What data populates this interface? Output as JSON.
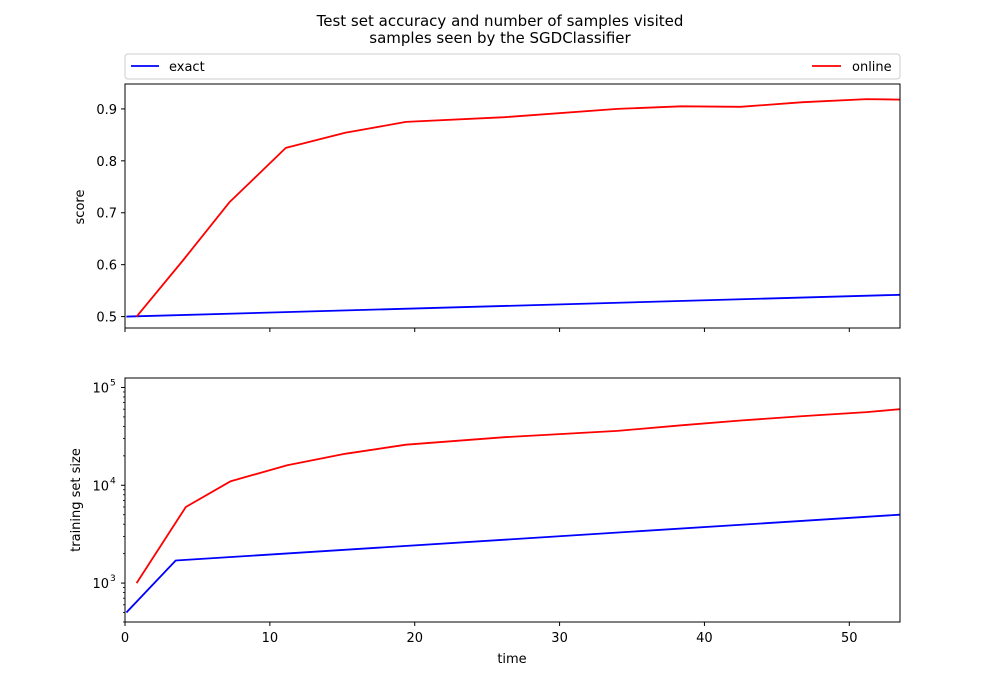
{
  "chart_data": {
    "title_line1": "Test set accuracy and number of samples visited",
    "title_line2": "samples seen by the SGDClassifier",
    "legend": {
      "placement": "top, spanning full width",
      "entries": [
        "exact",
        "online"
      ]
    },
    "colors": {
      "exact": "#0000ff",
      "online": "#ff0000"
    },
    "xlabel": "time",
    "xlim": [
      0,
      53.5
    ],
    "xticks": [
      0,
      10,
      20,
      30,
      40,
      50
    ],
    "x_tick_labels": [
      "0",
      "10",
      "20",
      "30",
      "40",
      "50"
    ],
    "grid": false,
    "subplots": [
      {
        "type": "line",
        "ylabel": "score",
        "yscale": "linear",
        "ylim": [
          0.478,
          0.948
        ],
        "yticks": [
          0.5,
          0.6,
          0.7,
          0.8,
          0.9
        ],
        "y_tick_labels": [
          "0.5",
          "0.6",
          "0.7",
          "0.8",
          "0.9"
        ],
        "series": [
          {
            "name": "exact",
            "x": [
              0.1,
              53.5
            ],
            "y": [
              0.5,
              0.542
            ]
          },
          {
            "name": "online",
            "x": [
              0.8,
              4.0,
              7.2,
              11.1,
              15.2,
              19.4,
              26.2,
              34.0,
              38.4,
              42.5,
              46.8,
              51.2,
              53.5
            ],
            "y": [
              0.5,
              0.608,
              0.72,
              0.825,
              0.854,
              0.875,
              0.884,
              0.9,
              0.905,
              0.904,
              0.913,
              0.919,
              0.918
            ]
          }
        ]
      },
      {
        "type": "line",
        "ylabel": "training set size",
        "yscale": "log",
        "ylim": [
          400,
          125000
        ],
        "yticks": [
          1000,
          10000,
          100000
        ],
        "y_tick_labels": [
          "10",
          "3",
          "10",
          "4",
          "10",
          "5"
        ],
        "series": [
          {
            "name": "exact",
            "x": [
              0.1,
              3.5,
              53.5
            ],
            "y": [
              500,
              1700,
              5000
            ]
          },
          {
            "name": "online",
            "x": [
              0.8,
              4.2,
              7.3,
              11.2,
              15.2,
              19.4,
              26.2,
              34.0,
              38.4,
              42.5,
              46.8,
              51.2,
              53.5
            ],
            "y": [
              1000,
              6000,
              11000,
              16000,
              21000,
              26000,
              31000,
              36000,
              41000,
              46000,
              51000,
              56000,
              60000
            ]
          }
        ]
      }
    ]
  }
}
